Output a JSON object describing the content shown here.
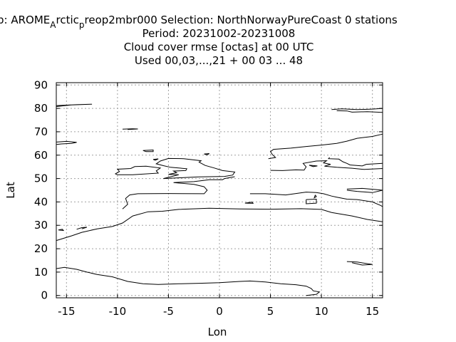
{
  "chart_data": {
    "type": "line",
    "title_lines": [
      "p: AROME",
      "A",
      "rctic",
      "p",
      "reop2mbr000   Selection: NorthNorwayPureCoast       0 stations",
      "Period: 20231002-20231008",
      "Cloud cover rmse [octas] at  00 UTC",
      "Used  00,03,...,21  + 00 03 ... 48"
    ],
    "xlabel": "Lon",
    "ylabel": "Lat",
    "xlim": [
      -16,
      16
    ],
    "ylim": [
      -1,
      91
    ],
    "xticks": [
      "-15",
      "-10",
      "-5",
      "0",
      "5",
      "10",
      "15"
    ],
    "xtick_values": [
      -15,
      -10,
      -5,
      0,
      5,
      10,
      15
    ],
    "yticks": [
      "0",
      "10",
      "20",
      "30",
      "40",
      "50",
      "60",
      "70",
      "80",
      "90"
    ],
    "ytick_values": [
      0,
      10,
      20,
      30,
      40,
      50,
      60,
      70,
      80,
      90
    ],
    "grid": true,
    "series": [
      {
        "values": [
          [
            -16,
            23.5
          ],
          [
            -14.5,
            25.5
          ],
          [
            -13.5,
            27
          ],
          [
            -12,
            28.5
          ],
          [
            -10.5,
            29.5
          ],
          [
            -9.5,
            31
          ],
          [
            -8.5,
            34
          ],
          [
            -7,
            35.8
          ],
          [
            -5.6,
            36
          ],
          [
            -4,
            36.8
          ],
          [
            -1,
            37.3
          ],
          [
            2,
            37
          ],
          [
            5,
            36.9
          ],
          [
            8,
            37.1
          ],
          [
            10,
            36.8
          ],
          [
            11,
            35.5
          ],
          [
            13,
            34
          ],
          [
            14.5,
            32.5
          ],
          [
            16,
            31.5
          ]
        ]
      },
      {
        "values": [
          [
            -16,
            11.5
          ],
          [
            -15.2,
            12
          ],
          [
            -14,
            11.2
          ],
          [
            -13,
            10
          ],
          [
            -12,
            9
          ],
          [
            -10.5,
            8
          ],
          [
            -9,
            6
          ],
          [
            -7.5,
            5
          ],
          [
            -6,
            4.7
          ],
          [
            -4,
            5
          ],
          [
            -2,
            5.2
          ],
          [
            0,
            5.5
          ],
          [
            2,
            6
          ],
          [
            3,
            6.2
          ],
          [
            4.5,
            5.8
          ],
          [
            6,
            5
          ],
          [
            7.5,
            4.6
          ],
          [
            8.5,
            4
          ],
          [
            9,
            3
          ],
          [
            9.2,
            2
          ],
          [
            9.8,
            1.5
          ],
          [
            9.5,
            0.5
          ],
          [
            8.5,
            0
          ]
        ]
      },
      {
        "values": [
          [
            -9.5,
            37
          ],
          [
            -9,
            39
          ],
          [
            -9.2,
            41.5
          ],
          [
            -8.8,
            43
          ],
          [
            -8,
            43.5
          ],
          [
            -5,
            43.6
          ],
          [
            -1.5,
            43.5
          ],
          [
            -1.2,
            45
          ],
          [
            -1.5,
            46.5
          ],
          [
            -2.5,
            47.5
          ],
          [
            -4.5,
            48.3
          ],
          [
            -2.5,
            48.7
          ],
          [
            -1,
            49.5
          ],
          [
            0.3,
            49.5
          ],
          [
            0.5,
            50
          ],
          [
            1.5,
            50.8
          ]
        ]
      },
      {
        "values": [
          [
            3,
            43.5
          ],
          [
            4.5,
            43.5
          ],
          [
            6.5,
            43
          ],
          [
            8.5,
            44.2
          ],
          [
            9.5,
            44
          ],
          [
            10.2,
            43.5
          ],
          [
            11,
            42.5
          ],
          [
            11.5,
            42
          ],
          [
            12.5,
            41.2
          ],
          [
            13.5,
            41
          ],
          [
            15,
            40
          ],
          [
            15.8,
            38.5
          ],
          [
            16,
            38
          ]
        ]
      },
      {
        "values": [
          [
            -5.5,
            50
          ],
          [
            -3.5,
            50.4
          ],
          [
            -2,
            50.7
          ],
          [
            0.5,
            50.9
          ],
          [
            1.3,
            51.5
          ],
          [
            1.5,
            52.8
          ],
          [
            0.3,
            53.4
          ],
          [
            -0.5,
            54.5
          ],
          [
            -1.4,
            55.6
          ],
          [
            -2,
            57
          ],
          [
            -1.8,
            57.6
          ],
          [
            -3.5,
            58.5
          ],
          [
            -5,
            58.6
          ],
          [
            -5.8,
            57.5
          ],
          [
            -6.2,
            56.3
          ],
          [
            -5.5,
            55.5
          ],
          [
            -4.8,
            54.8
          ],
          [
            -3.2,
            54.2
          ],
          [
            -3.3,
            53.4
          ],
          [
            -4.5,
            53.2
          ],
          [
            -4.2,
            52.5
          ],
          [
            -5,
            51.8
          ],
          [
            -4,
            51.6
          ],
          [
            -5.5,
            50
          ]
        ]
      },
      {
        "values": [
          [
            -10,
            51.6
          ],
          [
            -8.5,
            51.6
          ],
          [
            -6,
            52.3
          ],
          [
            -6.2,
            53.3
          ],
          [
            -5.8,
            54.5
          ],
          [
            -7.2,
            55.3
          ],
          [
            -8.3,
            55.1
          ],
          [
            -8.7,
            54.3
          ],
          [
            -10,
            54
          ],
          [
            -9.8,
            53
          ],
          [
            -10.2,
            52
          ],
          [
            -10,
            51.6
          ]
        ]
      },
      {
        "values": [
          [
            5,
            53.5
          ],
          [
            6.2,
            53.4
          ],
          [
            7.5,
            53.7
          ],
          [
            8.3,
            53.6
          ],
          [
            8.5,
            55
          ],
          [
            8.2,
            56.5
          ],
          [
            9.5,
            57.5
          ],
          [
            10.5,
            57.6
          ],
          [
            10.2,
            56.7
          ],
          [
            10.9,
            56.1
          ],
          [
            10.3,
            55.3
          ],
          [
            11.5,
            54.8
          ],
          [
            13,
            54.4
          ],
          [
            14.2,
            53.9
          ],
          [
            16,
            54.3
          ]
        ]
      },
      {
        "values": [
          [
            4.8,
            58.5
          ],
          [
            5.5,
            59
          ],
          [
            5.2,
            60.2
          ],
          [
            5,
            61.5
          ],
          [
            5.3,
            62.5
          ],
          [
            7,
            63
          ],
          [
            8.5,
            63.7
          ],
          [
            10,
            64.3
          ],
          [
            11.5,
            65
          ],
          [
            12.5,
            66
          ],
          [
            13.5,
            67.2
          ],
          [
            15,
            68
          ],
          [
            16,
            69
          ]
        ]
      },
      {
        "values": [
          [
            10.8,
            59
          ],
          [
            10.7,
            58.5
          ],
          [
            11.7,
            58.3
          ],
          [
            12.1,
            57.2
          ],
          [
            12.5,
            56.5
          ],
          [
            12.8,
            55.8
          ],
          [
            14,
            55.4
          ],
          [
            14.4,
            56.1
          ],
          [
            16,
            56.5
          ]
        ]
      },
      {
        "values": [
          [
            -16,
            81.2
          ],
          [
            -14,
            81.6
          ],
          [
            -12.5,
            81.8
          ],
          [
            -14.5,
            81.5
          ],
          [
            -16,
            80.8
          ]
        ]
      },
      {
        "values": [
          [
            11,
            79.5
          ],
          [
            12,
            79.8
          ],
          [
            13.5,
            79.5
          ],
          [
            15,
            79.7
          ],
          [
            16,
            80
          ],
          [
            16,
            78.3
          ],
          [
            14.5,
            78.6
          ],
          [
            13,
            78.4
          ],
          [
            12.5,
            78.9
          ],
          [
            11.5,
            79
          ]
        ]
      },
      {
        "values": [
          [
            -16,
            65.6
          ],
          [
            -15,
            65.9
          ],
          [
            -14,
            65.5
          ],
          [
            -14.5,
            65
          ],
          [
            -15.5,
            64.8
          ],
          [
            -16,
            64.6
          ]
        ]
      },
      {
        "values": [
          [
            -9.5,
            71.1
          ],
          [
            -8.5,
            71.3
          ],
          [
            -8,
            71.2
          ],
          [
            -9,
            71
          ]
        ]
      },
      {
        "values": [
          [
            -7.5,
            62
          ],
          [
            -6.5,
            62.2
          ],
          [
            -6.5,
            61.5
          ],
          [
            -7.2,
            61.5
          ],
          [
            -7.5,
            62
          ]
        ]
      },
      {
        "values": [
          [
            -15.8,
            28
          ],
          [
            -15.4,
            28.3
          ],
          [
            -15.3,
            27.8
          ],
          [
            -15.8,
            28
          ]
        ]
      },
      {
        "values": [
          [
            -14,
            28.3
          ],
          [
            -13.5,
            29
          ],
          [
            -13,
            29.2
          ],
          [
            -13.5,
            28.5
          ]
        ]
      },
      {
        "values": [
          [
            12.5,
            14.5
          ],
          [
            13.5,
            14.3
          ],
          [
            15,
            13.3
          ],
          [
            14,
            13
          ],
          [
            13,
            14
          ]
        ]
      },
      {
        "values": [
          [
            12.5,
            45.5
          ],
          [
            14,
            45.8
          ],
          [
            15.5,
            45.2
          ],
          [
            16,
            45
          ],
          [
            15,
            44
          ],
          [
            13.5,
            44.5
          ],
          [
            12.5,
            45
          ]
        ]
      },
      {
        "values": [
          [
            8.5,
            41
          ],
          [
            9.5,
            41.2
          ],
          [
            9.5,
            39.5
          ],
          [
            8.5,
            39.2
          ],
          [
            8.5,
            41
          ]
        ]
      },
      {
        "values": [
          [
            9.4,
            43
          ],
          [
            9.5,
            42.3
          ],
          [
            9.3,
            41.8
          ],
          [
            9.4,
            43
          ]
        ]
      },
      {
        "values": [
          [
            2.5,
            39.5
          ],
          [
            3.2,
            39.9
          ],
          [
            3.3,
            39.4
          ],
          [
            2.5,
            39.5
          ]
        ]
      },
      {
        "values": [
          [
            -6.5,
            58.2
          ],
          [
            -6,
            58.4
          ],
          [
            -6.3,
            57.8
          ],
          [
            -6.5,
            58.2
          ]
        ]
      },
      {
        "values": [
          [
            -1.5,
            60.5
          ],
          [
            -1,
            60.7
          ],
          [
            -1.2,
            60.1
          ],
          [
            -1.5,
            60.5
          ]
        ]
      },
      {
        "values": [
          [
            8.8,
            55.7
          ],
          [
            9.6,
            55.4
          ],
          [
            9.2,
            55.1
          ],
          [
            8.8,
            55.7
          ]
        ]
      }
    ]
  }
}
